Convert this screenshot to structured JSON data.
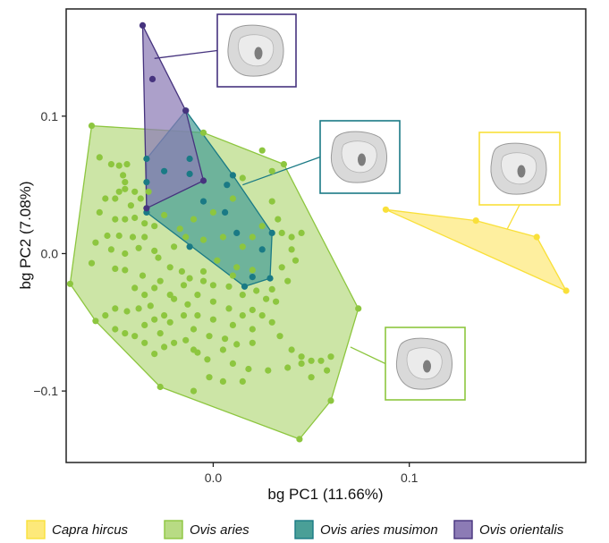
{
  "chart_data": {
    "type": "scatter",
    "xlabel": "bg PC1 (11.66%)",
    "ylabel": "bg PC2 (7.08%)",
    "xlim": [
      -0.075,
      0.19
    ],
    "ylim": [
      -0.152,
      0.178
    ],
    "x_ticks": [
      0.0,
      0.1
    ],
    "x_tick_labels": [
      "0.0",
      "0.1"
    ],
    "y_ticks": [
      -0.1,
      0.0,
      0.1
    ],
    "y_tick_labels": [
      "−0.1",
      "0.0",
      "0.1"
    ],
    "grid": false,
    "legend_position": "bottom",
    "series": [
      {
        "name": "Capra hircus",
        "color": "#f9e03a",
        "fill": "#fde97a",
        "hull": [
          [
            0.088,
            0.032
          ],
          [
            0.134,
            0.024
          ],
          [
            0.165,
            0.012
          ],
          [
            0.18,
            -0.027
          ]
        ],
        "points": [
          [
            0.088,
            0.032
          ],
          [
            0.134,
            0.024
          ],
          [
            0.165,
            0.012
          ],
          [
            0.18,
            -0.027
          ]
        ]
      },
      {
        "name": "Ovis aries",
        "color": "#8dc63f",
        "fill": "#b8db84",
        "hull": [
          [
            -0.062,
            0.093
          ],
          [
            -0.005,
            0.088
          ],
          [
            0.036,
            0.065
          ],
          [
            0.074,
            -0.04
          ],
          [
            0.06,
            -0.107
          ],
          [
            0.044,
            -0.135
          ],
          [
            -0.027,
            -0.097
          ],
          [
            -0.06,
            -0.049
          ],
          [
            -0.073,
            -0.022
          ],
          [
            -0.062,
            0.093
          ]
        ],
        "points": [
          [
            -0.062,
            0.093
          ],
          [
            -0.005,
            0.088
          ],
          [
            0.036,
            0.065
          ],
          [
            0.074,
            -0.04
          ],
          [
            0.06,
            -0.107
          ],
          [
            0.044,
            -0.135
          ],
          [
            -0.027,
            -0.097
          ],
          [
            -0.06,
            -0.049
          ],
          [
            -0.073,
            -0.022
          ],
          [
            0.025,
            0.075
          ],
          [
            0.03,
            0.06
          ],
          [
            0.015,
            0.055
          ],
          [
            -0.058,
            0.07
          ],
          [
            -0.052,
            0.065
          ],
          [
            -0.048,
            0.064
          ],
          [
            -0.044,
            0.065
          ],
          [
            -0.046,
            0.057
          ],
          [
            -0.045,
            0.052
          ],
          [
            -0.048,
            0.045
          ],
          [
            -0.045,
            0.047
          ],
          [
            -0.055,
            0.04
          ],
          [
            -0.05,
            0.04
          ],
          [
            -0.04,
            0.045
          ],
          [
            -0.033,
            0.045
          ],
          [
            -0.037,
            0.04
          ],
          [
            -0.042,
            0.035
          ],
          [
            -0.058,
            0.03
          ],
          [
            -0.05,
            0.025
          ],
          [
            -0.045,
            0.025
          ],
          [
            -0.04,
            0.026
          ],
          [
            -0.035,
            0.022
          ],
          [
            -0.054,
            0.013
          ],
          [
            -0.048,
            0.013
          ],
          [
            -0.041,
            0.012
          ],
          [
            -0.035,
            0.012
          ],
          [
            -0.06,
            0.008
          ],
          [
            -0.052,
            0.003
          ],
          [
            -0.045,
            0.0
          ],
          [
            -0.038,
            0.004
          ],
          [
            -0.03,
            0.002
          ],
          [
            -0.062,
            -0.007
          ],
          [
            -0.05,
            -0.011
          ],
          [
            -0.045,
            -0.012
          ],
          [
            -0.036,
            -0.016
          ],
          [
            -0.028,
            -0.003
          ],
          [
            -0.022,
            -0.01
          ],
          [
            -0.016,
            -0.013
          ],
          [
            -0.012,
            -0.018
          ],
          [
            -0.005,
            -0.02
          ],
          [
            0.0,
            -0.023
          ],
          [
            0.008,
            -0.024
          ],
          [
            0.015,
            -0.03
          ],
          [
            0.022,
            -0.027
          ],
          [
            0.03,
            -0.026
          ],
          [
            -0.02,
            0.005
          ],
          [
            -0.014,
            0.012
          ],
          [
            -0.005,
            0.01
          ],
          [
            0.005,
            0.012
          ],
          [
            0.015,
            0.005
          ],
          [
            0.02,
            0.012
          ],
          [
            0.035,
            0.015
          ],
          [
            0.04,
            0.012
          ],
          [
            0.045,
            0.015
          ],
          [
            0.04,
            0.003
          ],
          [
            0.042,
            -0.005
          ],
          [
            0.035,
            -0.01
          ],
          [
            0.038,
            -0.02
          ],
          [
            0.032,
            -0.035
          ],
          [
            0.027,
            -0.033
          ],
          [
            0.02,
            -0.041
          ],
          [
            0.015,
            -0.045
          ],
          [
            0.02,
            -0.055
          ],
          [
            0.02,
            -0.065
          ],
          [
            0.012,
            -0.066
          ],
          [
            0.01,
            -0.08
          ],
          [
            0.018,
            -0.084
          ],
          [
            0.015,
            -0.093
          ],
          [
            0.005,
            -0.093
          ],
          [
            -0.002,
            -0.09
          ],
          [
            -0.008,
            -0.072
          ],
          [
            -0.014,
            -0.063
          ],
          [
            -0.02,
            -0.065
          ],
          [
            -0.025,
            -0.068
          ],
          [
            -0.03,
            -0.073
          ],
          [
            -0.035,
            -0.065
          ],
          [
            -0.04,
            -0.06
          ],
          [
            -0.045,
            -0.058
          ],
          [
            -0.05,
            -0.055
          ],
          [
            -0.055,
            -0.045
          ],
          [
            -0.05,
            -0.04
          ],
          [
            -0.044,
            -0.042
          ],
          [
            -0.038,
            -0.04
          ],
          [
            -0.03,
            -0.048
          ],
          [
            -0.022,
            -0.05
          ],
          [
            -0.015,
            -0.045
          ],
          [
            -0.008,
            -0.045
          ],
          [
            0.0,
            -0.048
          ],
          [
            0.01,
            -0.052
          ],
          [
            0.006,
            -0.062
          ],
          [
            -0.002,
            -0.06
          ],
          [
            -0.01,
            -0.055
          ],
          [
            -0.035,
            -0.03
          ],
          [
            -0.04,
            -0.025
          ],
          [
            -0.03,
            -0.025
          ],
          [
            -0.022,
            -0.03
          ],
          [
            -0.015,
            -0.023
          ],
          [
            -0.008,
            -0.03
          ],
          [
            0.0,
            -0.035
          ],
          [
            0.008,
            -0.04
          ],
          [
            0.025,
            -0.045
          ],
          [
            0.03,
            -0.05
          ],
          [
            0.034,
            -0.06
          ],
          [
            0.04,
            -0.07
          ],
          [
            0.045,
            -0.075
          ],
          [
            0.05,
            -0.078
          ],
          [
            0.055,
            -0.078
          ],
          [
            0.06,
            -0.075
          ],
          [
            0.058,
            -0.085
          ],
          [
            0.05,
            -0.09
          ],
          [
            0.045,
            -0.08
          ],
          [
            0.038,
            -0.083
          ],
          [
            0.028,
            -0.085
          ],
          [
            -0.025,
            -0.045
          ],
          [
            -0.027,
            -0.058
          ],
          [
            -0.01,
            -0.07
          ],
          [
            -0.003,
            -0.077
          ],
          [
            0.005,
            -0.07
          ],
          [
            -0.035,
            -0.052
          ],
          [
            -0.032,
            -0.038
          ],
          [
            -0.027,
            -0.02
          ],
          [
            -0.02,
            -0.033
          ],
          [
            -0.013,
            -0.037
          ],
          [
            -0.005,
            -0.013
          ],
          [
            0.002,
            -0.005
          ],
          [
            0.012,
            -0.01
          ],
          [
            0.025,
            0.02
          ],
          [
            -0.01,
            0.025
          ],
          [
            0.0,
            0.03
          ],
          [
            0.01,
            0.04
          ],
          [
            -0.03,
            0.02
          ],
          [
            -0.025,
            0.028
          ],
          [
            -0.017,
            0.018
          ],
          [
            0.03,
            0.038
          ],
          [
            0.033,
            0.025
          ],
          [
            0.01,
            -0.016
          ],
          [
            0.02,
            -0.012
          ],
          [
            -0.01,
            -0.1
          ]
        ]
      },
      {
        "name": "Ovis aries musimon",
        "color": "#1a7a85",
        "fill": "#4a9f97",
        "hull": [
          [
            -0.014,
            0.104
          ],
          [
            0.01,
            0.057
          ],
          [
            0.03,
            0.015
          ],
          [
            0.029,
            -0.018
          ],
          [
            0.016,
            -0.024
          ],
          [
            -0.034,
            0.03
          ],
          [
            -0.034,
            0.069
          ],
          [
            -0.014,
            0.104
          ]
        ],
        "points": [
          [
            -0.014,
            0.104
          ],
          [
            0.01,
            0.057
          ],
          [
            0.03,
            0.015
          ],
          [
            0.029,
            -0.018
          ],
          [
            0.016,
            -0.024
          ],
          [
            -0.034,
            0.03
          ],
          [
            -0.034,
            0.069
          ],
          [
            -0.012,
            0.069
          ],
          [
            -0.012,
            0.058
          ],
          [
            -0.025,
            0.06
          ],
          [
            -0.034,
            0.052
          ],
          [
            0.007,
            0.05
          ],
          [
            -0.005,
            0.038
          ],
          [
            0.006,
            0.03
          ],
          [
            0.012,
            0.015
          ],
          [
            -0.012,
            0.005
          ],
          [
            0.025,
            0.003
          ],
          [
            0.02,
            -0.017
          ]
        ]
      },
      {
        "name": "Ovis orientalis",
        "color": "#46337e",
        "fill": "#8c7bb5",
        "hull": [
          [
            -0.036,
            0.166
          ],
          [
            -0.014,
            0.104
          ],
          [
            -0.005,
            0.053
          ],
          [
            -0.034,
            0.033
          ],
          [
            -0.036,
            0.166
          ]
        ],
        "points": [
          [
            -0.036,
            0.166
          ],
          [
            -0.014,
            0.104
          ],
          [
            -0.005,
            0.053
          ],
          [
            -0.034,
            0.033
          ],
          [
            -0.031,
            0.127
          ]
        ]
      }
    ]
  },
  "insets": [
    {
      "name": "Ovis orientalis",
      "border": "#46337e",
      "point": [
        -0.03,
        0.142
      ]
    },
    {
      "name": "Ovis aries musimon",
      "border": "#1a7a85",
      "point": [
        0.015,
        0.05
      ]
    },
    {
      "name": "Capra hircus",
      "border": "#f9e03a",
      "point": [
        0.15,
        0.018
      ]
    },
    {
      "name": "Ovis aries",
      "border": "#8dc63f",
      "point": [
        0.07,
        -0.068
      ]
    }
  ]
}
